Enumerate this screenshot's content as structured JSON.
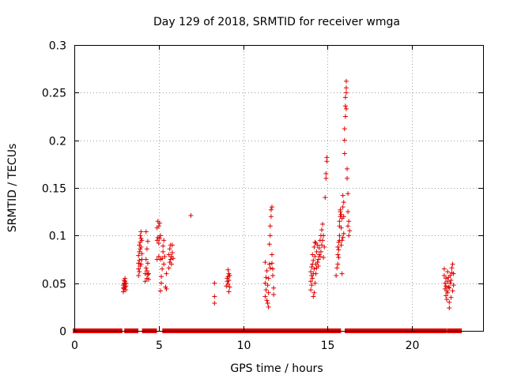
{
  "chart_data": {
    "type": "scatter",
    "title": "Day 129 of 2018, SRMTID for receiver wmga",
    "xlabel": "GPS time / hours",
    "ylabel": "SRMTID / TECUs",
    "xlim": [
      0,
      24.2
    ],
    "ylim": [
      0,
      0.3
    ],
    "x_ticks": [
      0,
      5,
      10,
      15,
      20
    ],
    "x_tick_labels": [
      "0",
      "5",
      "10",
      "15",
      "20"
    ],
    "y_ticks": [
      0,
      0.05,
      0.1,
      0.15,
      0.2,
      0.25,
      0.3
    ],
    "y_tick_labels": [
      "0",
      "0.05",
      "0.1",
      "0.15",
      "0.2",
      "0.25",
      "0.3"
    ],
    "grid": true,
    "marker": "plus",
    "color": "#e00000",
    "series": [
      {
        "name": "SRMTID",
        "points": [
          [
            2.9,
            0.041
          ],
          [
            2.9,
            0.045
          ],
          [
            2.9,
            0.048
          ],
          [
            2.95,
            0.044
          ],
          [
            2.95,
            0.05
          ],
          [
            2.95,
            0.053
          ],
          [
            3.0,
            0.046
          ],
          [
            3.0,
            0.049
          ],
          [
            3.0,
            0.052
          ],
          [
            3.0,
            0.055
          ],
          [
            3.05,
            0.043
          ],
          [
            3.05,
            0.047
          ],
          [
            3.05,
            0.05
          ],
          [
            3.8,
            0.058
          ],
          [
            3.8,
            0.065
          ],
          [
            3.8,
            0.071
          ],
          [
            3.8,
            0.079
          ],
          [
            3.85,
            0.062
          ],
          [
            3.85,
            0.074
          ],
          [
            3.85,
            0.083
          ],
          [
            3.85,
            0.09
          ],
          [
            3.9,
            0.068
          ],
          [
            3.9,
            0.086
          ],
          [
            3.9,
            0.093
          ],
          [
            3.9,
            0.1
          ],
          [
            3.95,
            0.07
          ],
          [
            3.95,
            0.088
          ],
          [
            3.95,
            0.097
          ],
          [
            3.95,
            0.104
          ],
          [
            4.0,
            0.075
          ],
          [
            4.0,
            0.081
          ],
          [
            4.0,
            0.095
          ],
          [
            4.2,
            0.052
          ],
          [
            4.2,
            0.06
          ],
          [
            4.25,
            0.066
          ],
          [
            4.25,
            0.075
          ],
          [
            4.3,
            0.055
          ],
          [
            4.3,
            0.063
          ],
          [
            4.3,
            0.086
          ],
          [
            4.35,
            0.059
          ],
          [
            4.35,
            0.071
          ],
          [
            4.35,
            0.094
          ],
          [
            4.4,
            0.06
          ],
          [
            4.4,
            0.054
          ],
          [
            4.25,
            0.104
          ],
          [
            4.9,
            0.075
          ],
          [
            4.9,
            0.095
          ],
          [
            4.9,
            0.108
          ],
          [
            4.95,
            0.098
          ],
          [
            4.95,
            0.115
          ],
          [
            5.0,
            0.078
          ],
          [
            5.0,
            0.092
          ],
          [
            5.0,
            0.11
          ],
          [
            5.05,
            0.097
          ],
          [
            5.05,
            0.113
          ],
          [
            5.1,
            0.1
          ],
          [
            5.1,
            0.042
          ],
          [
            5.15,
            0.05
          ],
          [
            5.15,
            0.057
          ],
          [
            5.2,
            0.065
          ],
          [
            5.2,
            0.076
          ],
          [
            5.25,
            0.083
          ],
          [
            5.25,
            0.089
          ],
          [
            5.3,
            0.07
          ],
          [
            5.3,
            0.095
          ],
          [
            5.35,
            0.078
          ],
          [
            5.4,
            0.046
          ],
          [
            5.45,
            0.044
          ],
          [
            5.45,
            0.06
          ],
          [
            5.1,
            0.075
          ],
          [
            5.6,
            0.066
          ],
          [
            5.6,
            0.08
          ],
          [
            5.65,
            0.072
          ],
          [
            5.65,
            0.086
          ],
          [
            5.7,
            0.075
          ],
          [
            5.7,
            0.09
          ],
          [
            5.75,
            0.07
          ],
          [
            5.75,
            0.078
          ],
          [
            5.8,
            0.082
          ],
          [
            5.8,
            0.09
          ],
          [
            5.85,
            0.076
          ],
          [
            6.9,
            0.121
          ],
          [
            8.3,
            0.05
          ],
          [
            8.3,
            0.036
          ],
          [
            8.3,
            0.029
          ],
          [
            9.0,
            0.047
          ],
          [
            9.05,
            0.052
          ],
          [
            9.05,
            0.055
          ],
          [
            9.1,
            0.049
          ],
          [
            9.1,
            0.057
          ],
          [
            9.1,
            0.064
          ],
          [
            9.15,
            0.041
          ],
          [
            9.15,
            0.053
          ],
          [
            9.15,
            0.06
          ],
          [
            9.2,
            0.046
          ],
          [
            9.2,
            0.058
          ],
          [
            11.3,
            0.036
          ],
          [
            11.3,
            0.05
          ],
          [
            11.3,
            0.072
          ],
          [
            11.35,
            0.043
          ],
          [
            11.35,
            0.056
          ],
          [
            11.4,
            0.032
          ],
          [
            11.4,
            0.063
          ],
          [
            11.45,
            0.029
          ],
          [
            11.45,
            0.048
          ],
          [
            11.5,
            0.025
          ],
          [
            11.5,
            0.04
          ],
          [
            11.5,
            0.055
          ],
          [
            11.55,
            0.07
          ],
          [
            11.55,
            0.091
          ],
          [
            11.6,
            0.1
          ],
          [
            11.6,
            0.11
          ],
          [
            11.65,
            0.12
          ],
          [
            11.65,
            0.127
          ],
          [
            11.7,
            0.08
          ],
          [
            11.7,
            0.071
          ],
          [
            11.75,
            0.065
          ],
          [
            11.75,
            0.058
          ],
          [
            11.8,
            0.045
          ],
          [
            11.8,
            0.038
          ],
          [
            11.7,
            0.13
          ],
          [
            11.6,
            0.066
          ],
          [
            14.0,
            0.043
          ],
          [
            14.0,
            0.052
          ],
          [
            14.0,
            0.062
          ],
          [
            14.05,
            0.048
          ],
          [
            14.05,
            0.058
          ],
          [
            14.05,
            0.067
          ],
          [
            14.1,
            0.055
          ],
          [
            14.1,
            0.07
          ],
          [
            14.1,
            0.08
          ],
          [
            14.15,
            0.036
          ],
          [
            14.15,
            0.06
          ],
          [
            14.15,
            0.074
          ],
          [
            14.2,
            0.04
          ],
          [
            14.2,
            0.065
          ],
          [
            14.2,
            0.088
          ],
          [
            14.25,
            0.05
          ],
          [
            14.25,
            0.078
          ],
          [
            14.25,
            0.093
          ],
          [
            14.3,
            0.06
          ],
          [
            14.3,
            0.07
          ],
          [
            14.35,
            0.066
          ],
          [
            14.35,
            0.083
          ],
          [
            14.4,
            0.072
          ],
          [
            14.4,
            0.09
          ],
          [
            14.45,
            0.075
          ],
          [
            14.5,
            0.08
          ],
          [
            14.5,
            0.087
          ],
          [
            14.55,
            0.078
          ],
          [
            14.55,
            0.095
          ],
          [
            14.6,
            0.083
          ],
          [
            14.6,
            0.1
          ],
          [
            14.65,
            0.09
          ],
          [
            14.65,
            0.106
          ],
          [
            14.7,
            0.095
          ],
          [
            14.7,
            0.112
          ],
          [
            14.75,
            0.1
          ],
          [
            14.75,
            0.077
          ],
          [
            14.8,
            0.088
          ],
          [
            14.3,
            0.092
          ],
          [
            14.45,
            0.068
          ],
          [
            14.85,
            0.14
          ],
          [
            14.9,
            0.16
          ],
          [
            14.9,
            0.165
          ],
          [
            14.95,
            0.178
          ],
          [
            14.95,
            0.182
          ],
          [
            15.5,
            0.058
          ],
          [
            15.55,
            0.066
          ],
          [
            15.6,
            0.07
          ],
          [
            15.6,
            0.08
          ],
          [
            15.6,
            0.088
          ],
          [
            15.65,
            0.077
          ],
          [
            15.65,
            0.085
          ],
          [
            15.65,
            0.093
          ],
          [
            15.7,
            0.095
          ],
          [
            15.7,
            0.1
          ],
          [
            15.7,
            0.11
          ],
          [
            15.7,
            0.115
          ],
          [
            15.75,
            0.12
          ],
          [
            15.75,
            0.125
          ],
          [
            15.75,
            0.127
          ],
          [
            15.8,
            0.09
          ],
          [
            15.8,
            0.108
          ],
          [
            15.8,
            0.122
          ],
          [
            15.85,
            0.06
          ],
          [
            15.85,
            0.095
          ],
          [
            15.85,
            0.118
          ],
          [
            15.9,
            0.098
          ],
          [
            15.9,
            0.13
          ],
          [
            15.9,
            0.142
          ],
          [
            15.95,
            0.102
          ],
          [
            15.95,
            0.12
          ],
          [
            15.95,
            0.135
          ],
          [
            16.0,
            0.186
          ],
          [
            16.0,
            0.2
          ],
          [
            16.0,
            0.212
          ],
          [
            16.05,
            0.225
          ],
          [
            16.05,
            0.236
          ],
          [
            16.05,
            0.245
          ],
          [
            16.1,
            0.25
          ],
          [
            16.1,
            0.255
          ],
          [
            16.1,
            0.262
          ],
          [
            16.1,
            0.233
          ],
          [
            16.15,
            0.17
          ],
          [
            16.15,
            0.16
          ],
          [
            16.2,
            0.144
          ],
          [
            16.2,
            0.125
          ],
          [
            16.2,
            0.11
          ],
          [
            16.25,
            0.1
          ],
          [
            16.25,
            0.115
          ],
          [
            16.3,
            0.105
          ],
          [
            21.9,
            0.065
          ],
          [
            21.9,
            0.058
          ],
          [
            21.95,
            0.05
          ],
          [
            21.95,
            0.044
          ],
          [
            22.0,
            0.037
          ],
          [
            22.0,
            0.047
          ],
          [
            22.0,
            0.055
          ],
          [
            22.05,
            0.033
          ],
          [
            22.05,
            0.042
          ],
          [
            22.1,
            0.04
          ],
          [
            22.1,
            0.052
          ],
          [
            22.1,
            0.062
          ],
          [
            22.15,
            0.046
          ],
          [
            22.15,
            0.056
          ],
          [
            22.2,
            0.024
          ],
          [
            22.2,
            0.03
          ],
          [
            22.2,
            0.045
          ],
          [
            22.25,
            0.05
          ],
          [
            22.25,
            0.058
          ],
          [
            22.3,
            0.035
          ],
          [
            22.3,
            0.053
          ],
          [
            22.35,
            0.061
          ],
          [
            22.35,
            0.066
          ],
          [
            22.4,
            0.07
          ],
          [
            22.4,
            0.042
          ],
          [
            22.45,
            0.06
          ],
          [
            22.45,
            0.048
          ]
        ],
        "zero_segments": [
          [
            0.05,
            2.7
          ],
          [
            3.1,
            3.65
          ],
          [
            4.15,
            4.75
          ],
          [
            5.35,
            5.55
          ],
          [
            5.8,
            11.65
          ],
          [
            11.9,
            13.85
          ],
          [
            14.1,
            14.75
          ],
          [
            15.0,
            15.65
          ],
          [
            16.15,
            21.9
          ],
          [
            22.2,
            22.4
          ],
          [
            22.6,
            22.8
          ]
        ]
      }
    ]
  }
}
